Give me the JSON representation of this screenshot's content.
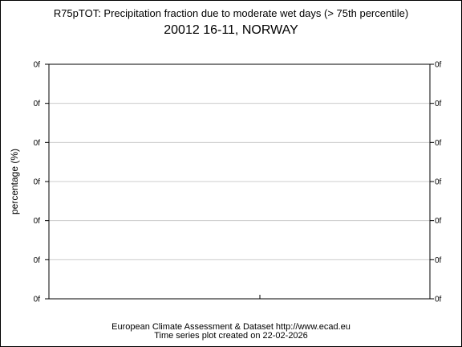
{
  "chart_data": {
    "type": "line",
    "title": "R75pTOT: Precipitation fraction due to moderate wet days (> 75th percentile)",
    "subtitle": "20012 16-11, NORWAY",
    "ylabel": "percentage (%)",
    "xlabel": "",
    "y_tick_labels": [
      "0f",
      "0f",
      "0f",
      "0f",
      "0f",
      "0f",
      "0f"
    ],
    "x_tick_labels": [],
    "series": [],
    "grid": true,
    "legend": "none"
  },
  "footer": {
    "line1": "European Climate Assessment & Dataset  http://www.ecad.eu",
    "line2": "Time series plot created on 22-02-2026"
  },
  "colors": {
    "background": "#ffffff",
    "axis": "#000000",
    "grid": "#cccccc"
  }
}
